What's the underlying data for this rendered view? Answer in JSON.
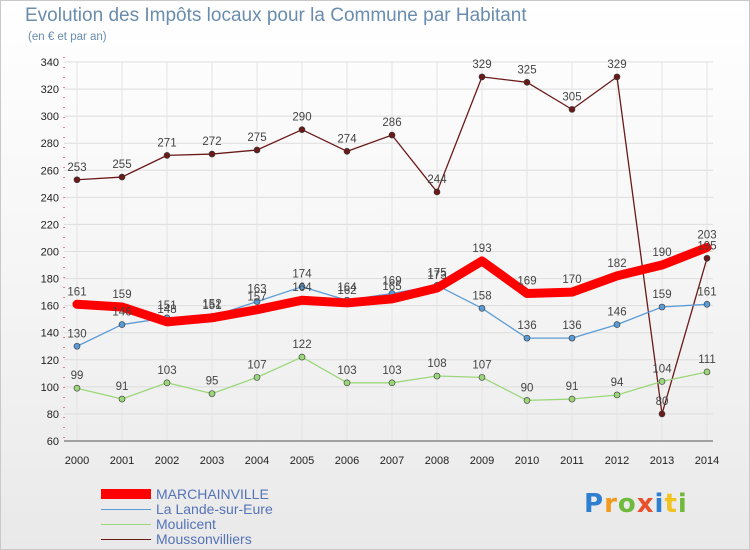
{
  "chart_data": {
    "type": "line",
    "title": "Evolution des Impôts locaux pour la Commune par Habitant",
    "subtitle": "(en € et par an)",
    "xlabel": "",
    "ylabel": "",
    "x": [
      "2000",
      "2001",
      "2002",
      "2003",
      "2004",
      "2005",
      "2006",
      "2007",
      "2008",
      "2009",
      "2010",
      "2011",
      "2012",
      "2013",
      "2014"
    ],
    "ylim": [
      60,
      340
    ],
    "yticks": [
      60,
      80,
      100,
      120,
      140,
      160,
      180,
      200,
      220,
      240,
      260,
      280,
      300,
      320,
      340
    ],
    "grid": true,
    "legend_position": "bottom-left",
    "series": [
      {
        "name": "MARCHAINVILLE",
        "color": "#ff0000",
        "values": [
          161,
          159,
          148,
          151,
          157,
          164,
          162,
          165,
          173,
          193,
          169,
          170,
          182,
          190,
          203
        ]
      },
      {
        "name": "La Lande-sur-Eure",
        "color": "#5b9bd5",
        "values": [
          130,
          146,
          151,
          152,
          163,
          174,
          164,
          169,
          175,
          158,
          136,
          136,
          146,
          159,
          161
        ]
      },
      {
        "name": "Moulicent",
        "color": "#9bd77a",
        "values": [
          99,
          91,
          103,
          95,
          107,
          122,
          103,
          103,
          108,
          107,
          90,
          91,
          94,
          104,
          111
        ]
      },
      {
        "name": "Moussonvilliers",
        "color": "#6b1a1a",
        "values": [
          253,
          255,
          271,
          272,
          275,
          290,
          274,
          286,
          244,
          329,
          325,
          305,
          329,
          80,
          195
        ]
      }
    ]
  },
  "brand": {
    "logo_letters": [
      "P",
      "r",
      "o",
      "x",
      "i",
      "t",
      "i"
    ]
  }
}
